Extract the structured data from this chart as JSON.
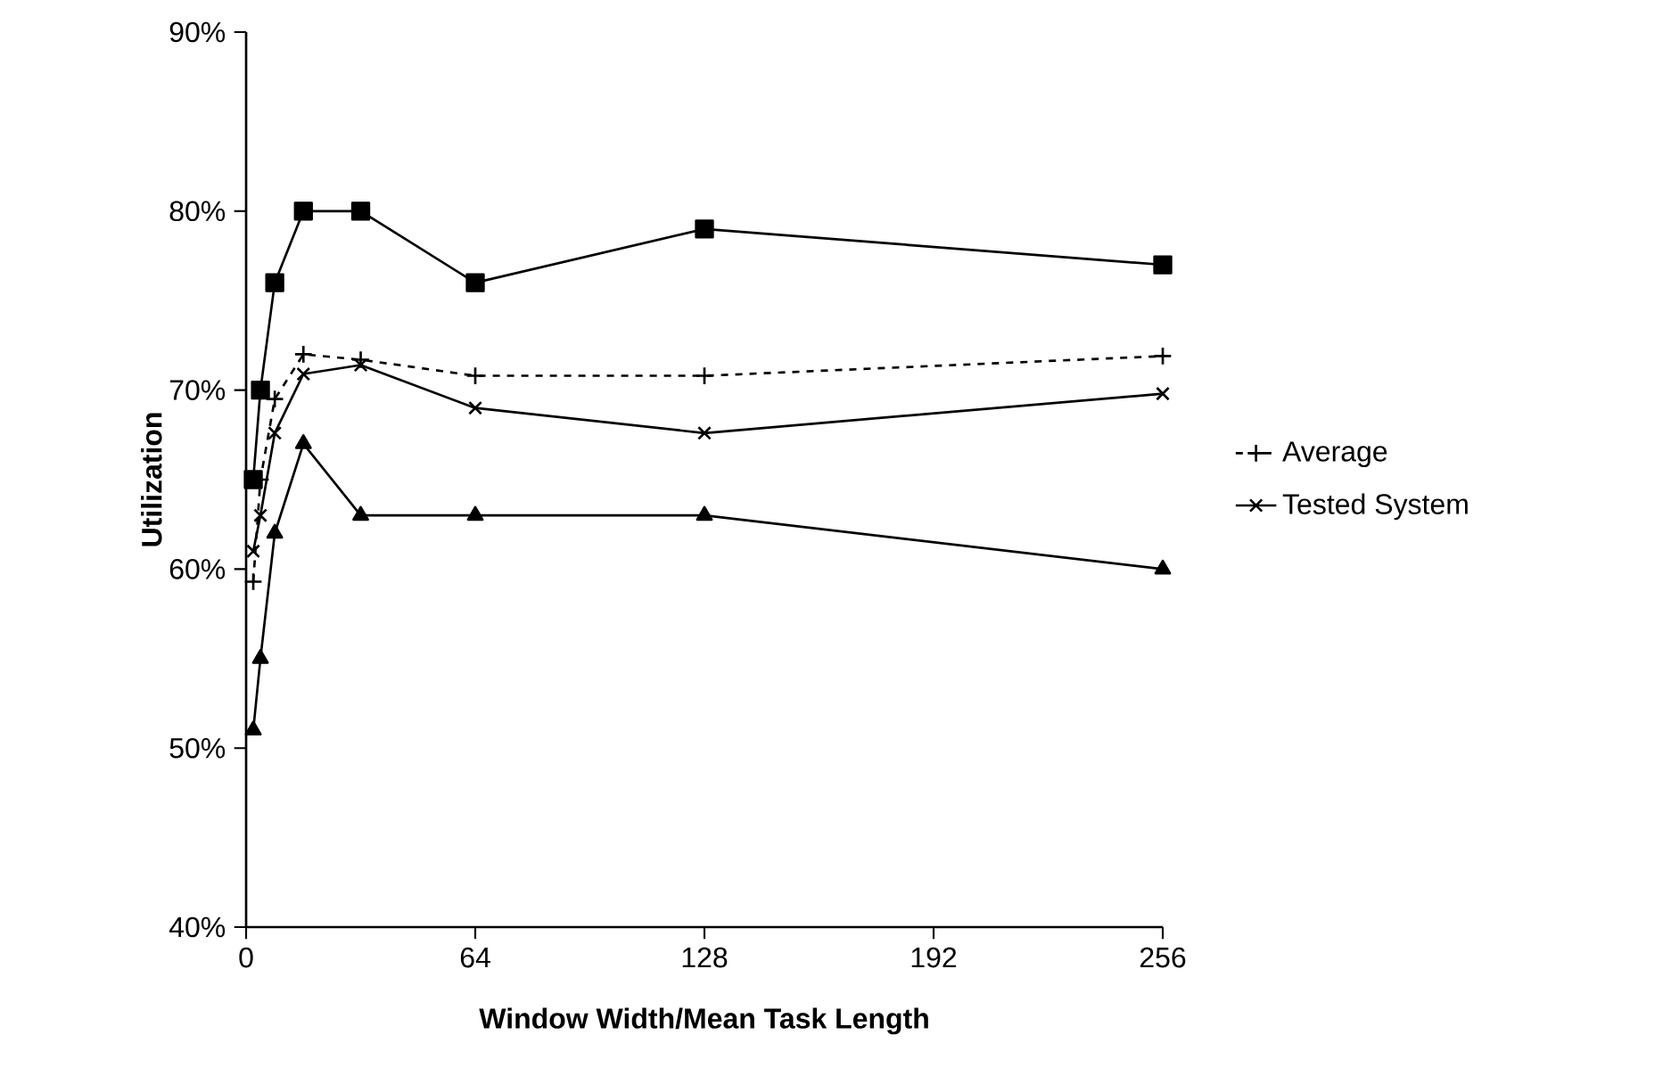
{
  "chart_data": {
    "type": "line",
    "xlabel": "Window Width/Mean Task Length",
    "ylabel": "Utilization",
    "x": [
      2,
      4,
      8,
      16,
      32,
      64,
      128,
      256
    ],
    "xlim": [
      0,
      256
    ],
    "xticks": [
      0,
      64,
      128,
      192,
      256
    ],
    "ylim": [
      40,
      90
    ],
    "yticks": [
      {
        "value": 40,
        "label": "40%"
      },
      {
        "value": 50,
        "label": "50%"
      },
      {
        "value": 60,
        "label": "60%"
      },
      {
        "value": 70,
        "label": "70%"
      },
      {
        "value": 80,
        "label": "80%"
      },
      {
        "value": 90,
        "label": "90%"
      }
    ],
    "legend": "right",
    "grid": false,
    "series": [
      {
        "color": "#000000",
        "marker": "square",
        "line_style": "solid",
        "values": [
          65,
          70,
          76,
          80,
          80,
          76,
          79,
          77
        ]
      },
      {
        "name": "Average",
        "color": "#000000",
        "marker": "plus",
        "line_style": "dashed",
        "values": [
          59.3,
          65,
          69.5,
          72,
          71.7,
          70.8,
          70.8,
          71.9
        ]
      },
      {
        "name": "Tested System",
        "color": "#000000",
        "marker": "cross",
        "line_style": "solid",
        "values": [
          61,
          63,
          67.6,
          70.9,
          71.4,
          69,
          67.6,
          69.8
        ]
      },
      {
        "color": "#000000",
        "marker": "triangle",
        "line_style": "solid",
        "values": [
          51,
          55,
          62,
          67,
          63,
          63,
          63,
          60
        ]
      }
    ]
  }
}
